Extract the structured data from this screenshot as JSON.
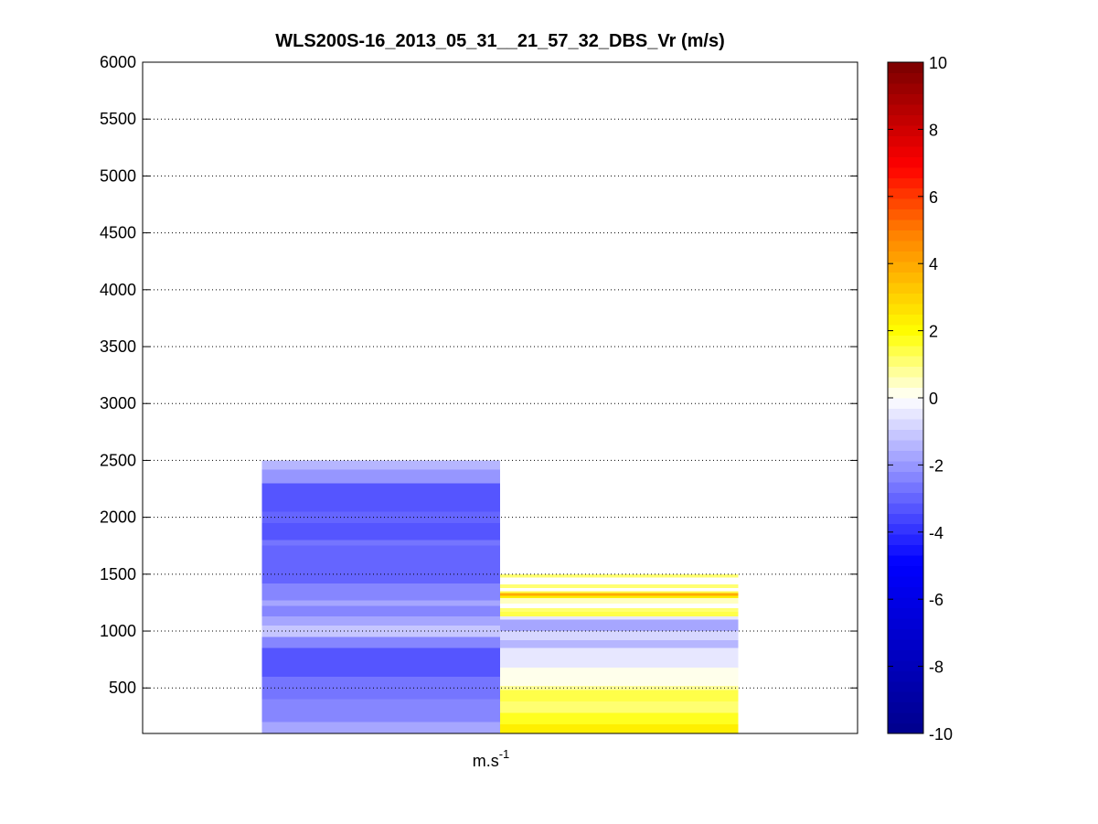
{
  "chart_data": {
    "type": "heatmap",
    "title": "WLS200S-16_2013_05_31__21_57_32_DBS_Vr (m/s)",
    "xlabel_base": "m.s",
    "xlabel_exp": "-1",
    "ylabel": "",
    "ylim": [
      100,
      6000
    ],
    "yticks": [
      500,
      1000,
      1500,
      2000,
      2500,
      3000,
      3500,
      4000,
      4500,
      5000,
      5500,
      6000
    ],
    "grid": "y-dotted",
    "colorbar": {
      "label": "",
      "clim": [
        -10,
        10
      ],
      "ticks": [
        -10,
        -8,
        -6,
        -4,
        -2,
        0,
        2,
        4,
        6,
        8,
        10
      ],
      "position": "right",
      "levels": 64
    },
    "colors": {
      "dark_blue": "#00008f",
      "blue": "#0000ff",
      "white": "#ffffff",
      "yellow": "#ffff00",
      "red": "#ff0000",
      "dark_red": "#800000"
    },
    "columns": [
      {
        "name": "",
        "x_range": [
          0.5,
          1.5
        ],
        "cells": [
          {
            "alt": [
              2420,
              2500
            ],
            "vr": -1.3
          },
          {
            "alt": [
              2300,
              2420
            ],
            "vr": -2.0
          },
          {
            "alt": [
              2050,
              2300
            ],
            "vr": -3.2
          },
          {
            "alt": [
              1950,
              2050
            ],
            "vr": -3.0
          },
          {
            "alt": [
              1800,
              1950
            ],
            "vr": -3.3
          },
          {
            "alt": [
              1750,
              1800
            ],
            "vr": -2.6
          },
          {
            "alt": [
              1550,
              1750
            ],
            "vr": -3.0
          },
          {
            "alt": [
              1420,
              1550
            ],
            "vr": -3.1
          },
          {
            "alt": [
              1270,
              1420
            ],
            "vr": -2.5
          },
          {
            "alt": [
              1220,
              1270
            ],
            "vr": -1.6
          },
          {
            "alt": [
              1130,
              1220
            ],
            "vr": -2.5
          },
          {
            "alt": [
              1050,
              1130
            ],
            "vr": -1.6
          },
          {
            "alt": [
              950,
              1050
            ],
            "vr": -1.2
          },
          {
            "alt": [
              850,
              950
            ],
            "vr": -2.3
          },
          {
            "alt": [
              600,
              850
            ],
            "vr": -3.2
          },
          {
            "alt": [
              400,
              600
            ],
            "vr": -2.8
          },
          {
            "alt": [
              200,
              400
            ],
            "vr": -2.3
          },
          {
            "alt": [
              100,
              200
            ],
            "vr": -1.6
          }
        ]
      },
      {
        "name": "",
        "x_range": [
          1.5,
          2.5
        ],
        "cells": [
          {
            "alt": [
              1470,
              1500
            ],
            "vr": 1.2
          },
          {
            "alt": [
              1380,
              1410
            ],
            "vr": 1.2
          },
          {
            "alt": [
              1335,
              1350
            ],
            "vr": 1.5
          },
          {
            "alt": [
              1310,
              1335
            ],
            "vr": 3.8
          },
          {
            "alt": [
              1290,
              1310
            ],
            "vr": 2.2
          },
          {
            "alt": [
              1240,
              1290
            ],
            "vr": 0.5
          },
          {
            "alt": [
              1170,
              1200
            ],
            "vr": 1.0
          },
          {
            "alt": [
              1130,
              1170
            ],
            "vr": 1.4
          },
          {
            "alt": [
              1100,
              1130
            ],
            "vr": -0.5
          },
          {
            "alt": [
              1000,
              1100
            ],
            "vr": -1.7
          },
          {
            "alt": [
              920,
              1000
            ],
            "vr": -0.8
          },
          {
            "alt": [
              850,
              920
            ],
            "vr": -1.5
          },
          {
            "alt": [
              820,
              850
            ],
            "vr": -0.6
          },
          {
            "alt": [
              680,
              820
            ],
            "vr": -0.4
          },
          {
            "alt": [
              520,
              680
            ],
            "vr": 0.0
          },
          {
            "alt": [
              480,
              520
            ],
            "vr": 0.8
          },
          {
            "alt": [
              380,
              480
            ],
            "vr": 1.3
          },
          {
            "alt": [
              280,
              380
            ],
            "vr": 1.2
          },
          {
            "alt": [
              180,
              280
            ],
            "vr": 1.7
          },
          {
            "alt": [
              100,
              180
            ],
            "vr": 2.4
          }
        ]
      }
    ]
  }
}
